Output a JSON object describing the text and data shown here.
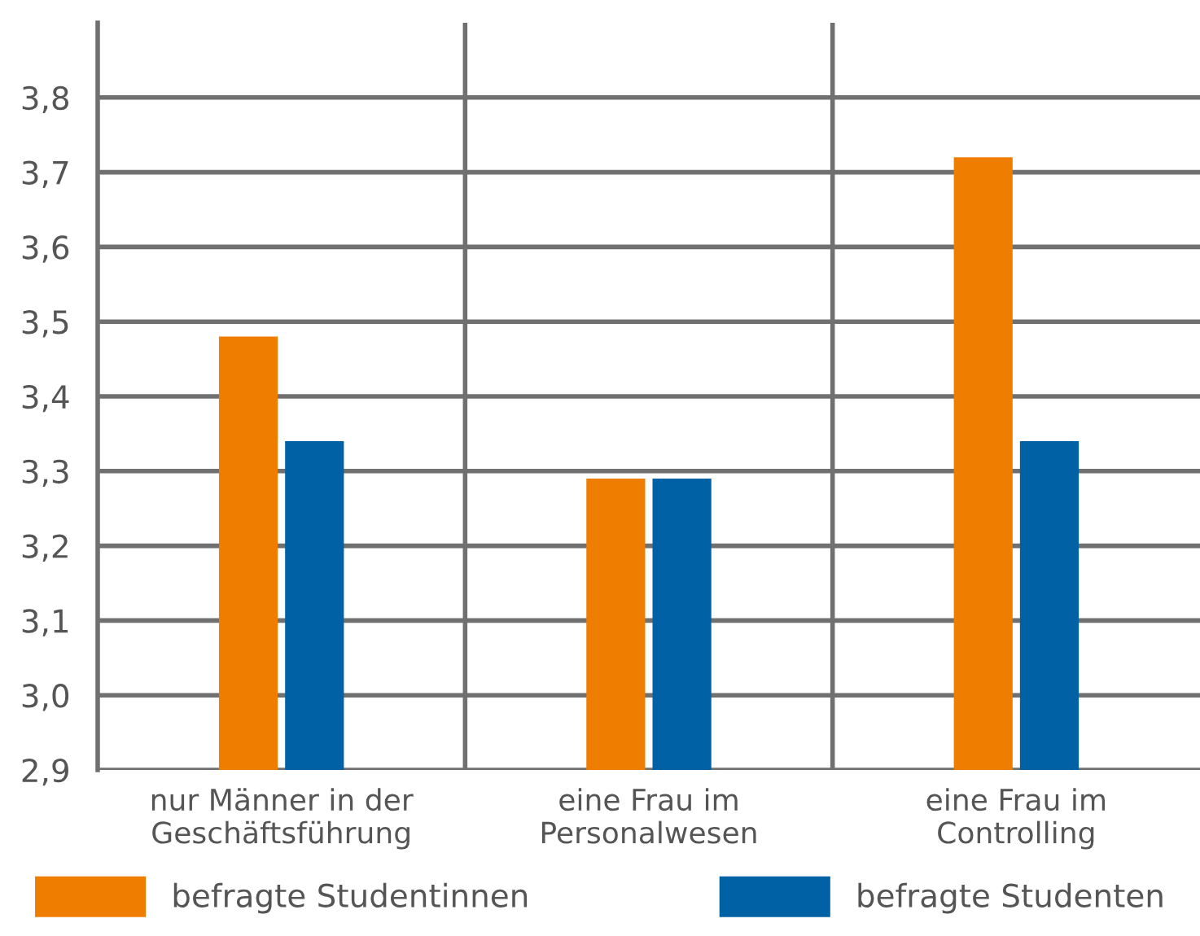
{
  "chart_data": {
    "type": "bar",
    "categories": [
      "nur Männer in der\nGeschäftsführung",
      "eine Frau im\nPersonalwesen",
      "eine Frau im\nControlling"
    ],
    "series": [
      {
        "name": "befragte Studentinnen",
        "color": "#ee7d00",
        "values": [
          3.48,
          3.29,
          3.72
        ]
      },
      {
        "name": "befragte Studenten",
        "color": "#0061a5",
        "values": [
          3.34,
          3.29,
          3.34
        ]
      }
    ],
    "ylim": [
      2.9,
      3.9
    ],
    "yticks": [
      {
        "value": 2.9,
        "label": "2,9"
      },
      {
        "value": 3.0,
        "label": "3,0"
      },
      {
        "value": 3.1,
        "label": "3,1"
      },
      {
        "value": 3.2,
        "label": "3,2"
      },
      {
        "value": 3.3,
        "label": "3,3"
      },
      {
        "value": 3.4,
        "label": "3,4"
      },
      {
        "value": 3.5,
        "label": "3,5"
      },
      {
        "value": 3.6,
        "label": "3,6"
      },
      {
        "value": 3.7,
        "label": "3,7"
      },
      {
        "value": 3.8,
        "label": "3,8"
      }
    ],
    "grid": "y",
    "legend": "bottom"
  }
}
